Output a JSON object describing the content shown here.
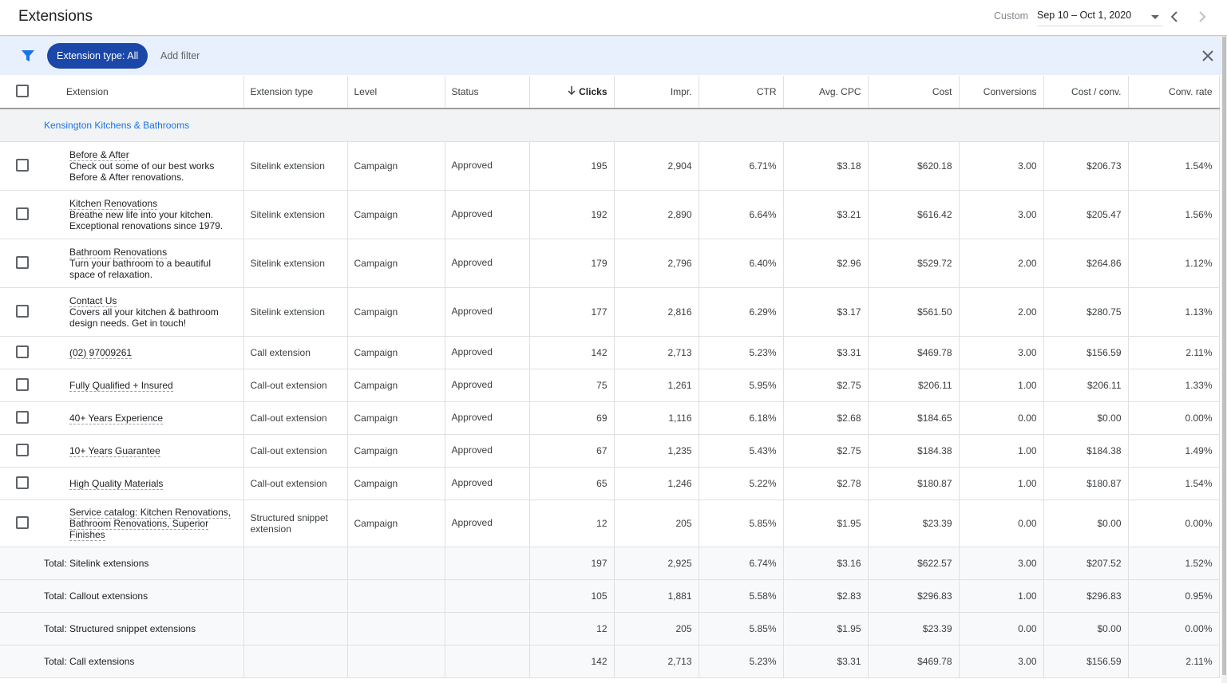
{
  "header": {
    "title": "Extensions",
    "date_label": "Custom",
    "date_range": "Sep 10 – Oct 1, 2020"
  },
  "filter": {
    "chip": "Extension type: All",
    "add_filter": "Add filter"
  },
  "table": {
    "columns": [
      "Extension",
      "Extension type",
      "Level",
      "Status",
      "Clicks",
      "Impr.",
      "CTR",
      "Avg. CPC",
      "Cost",
      "Conversions",
      "Cost / conv.",
      "Conv. rate"
    ],
    "group": "Kensington Kitchens & Bathrooms",
    "rows": [
      {
        "title": "Before & After",
        "description": "Check out some of our best works Before & After renovations.",
        "cells": [
          "Sitelink extension",
          "Campaign",
          "Approved",
          "195",
          "2,904",
          "6.71%",
          "$3.18",
          "$620.18",
          "3.00",
          "$206.73",
          "1.54%"
        ]
      },
      {
        "title": "Kitchen Renovations",
        "description": "Breathe new life into your kitchen. Exceptional renovations since 1979.",
        "cells": [
          "Sitelink extension",
          "Campaign",
          "Approved",
          "192",
          "2,890",
          "6.64%",
          "$3.21",
          "$616.42",
          "3.00",
          "$205.47",
          "1.56%"
        ]
      },
      {
        "title": "Bathroom Renovations",
        "description": "Turn your bathroom to a beautiful space of relaxation.",
        "cells": [
          "Sitelink extension",
          "Campaign",
          "Approved",
          "179",
          "2,796",
          "6.40%",
          "$2.96",
          "$529.72",
          "2.00",
          "$264.86",
          "1.12%"
        ]
      },
      {
        "title": "Contact Us",
        "description": "Covers all your kitchen & bathroom design needs. Get in touch!",
        "cells": [
          "Sitelink extension",
          "Campaign",
          "Approved",
          "177",
          "2,816",
          "6.29%",
          "$3.17",
          "$561.50",
          "2.00",
          "$280.75",
          "1.13%"
        ]
      },
      {
        "title": "(02) 97009261",
        "cells": [
          "Call extension",
          "Campaign",
          "Approved",
          "142",
          "2,713",
          "5.23%",
          "$3.31",
          "$469.78",
          "3.00",
          "$156.59",
          "2.11%"
        ]
      },
      {
        "title": "Fully Qualified + Insured",
        "cells": [
          "Call-out extension",
          "Campaign",
          "Approved",
          "75",
          "1,261",
          "5.95%",
          "$2.75",
          "$206.11",
          "1.00",
          "$206.11",
          "1.33%"
        ]
      },
      {
        "title": "40+ Years Experience",
        "cells": [
          "Call-out extension",
          "Campaign",
          "Approved",
          "69",
          "1,116",
          "6.18%",
          "$2.68",
          "$184.65",
          "0.00",
          "$0.00",
          "0.00%"
        ]
      },
      {
        "title": "10+ Years Guarantee",
        "cells": [
          "Call-out extension",
          "Campaign",
          "Approved",
          "67",
          "1,235",
          "5.43%",
          "$2.75",
          "$184.38",
          "1.00",
          "$184.38",
          "1.49%"
        ]
      },
      {
        "title": "High Quality Materials",
        "cells": [
          "Call-out extension",
          "Campaign",
          "Approved",
          "65",
          "1,246",
          "5.22%",
          "$2.78",
          "$180.87",
          "1.00",
          "$180.87",
          "1.54%"
        ]
      },
      {
        "title": "Service catalog: Kitchen Renovations, Bathroom Renovations, Superior Finishes",
        "cells": [
          "Structured snippet extension",
          "Campaign",
          "Approved",
          "12",
          "205",
          "5.85%",
          "$1.95",
          "$23.39",
          "0.00",
          "$0.00",
          "0.00%"
        ]
      }
    ],
    "totals": [
      {
        "label": "Total: Sitelink extensions",
        "cells": [
          "197",
          "2,925",
          "6.74%",
          "$3.16",
          "$622.57",
          "3.00",
          "$207.52",
          "1.52%"
        ]
      },
      {
        "label": "Total: Callout extensions",
        "cells": [
          "105",
          "1,881",
          "5.58%",
          "$2.83",
          "$296.83",
          "1.00",
          "$296.83",
          "0.95%"
        ]
      },
      {
        "label": "Total: Structured snippet extensions",
        "cells": [
          "12",
          "205",
          "5.85%",
          "$1.95",
          "$23.39",
          "0.00",
          "$0.00",
          "0.00%"
        ]
      },
      {
        "label": "Total: Call extensions",
        "cells": [
          "142",
          "2,713",
          "5.23%",
          "$3.31",
          "$469.78",
          "3.00",
          "$156.59",
          "2.11%"
        ]
      }
    ]
  }
}
